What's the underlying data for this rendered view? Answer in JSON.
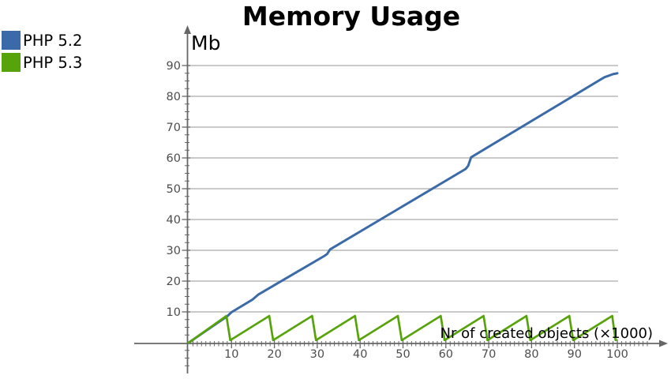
{
  "title": "Memory Usage",
  "legend": {
    "items": [
      {
        "label": "PHP 5.2",
        "color": "#3a6aa8"
      },
      {
        "label": "PHP 5.3",
        "color": "#57a30b"
      }
    ]
  },
  "chart_data": {
    "type": "line",
    "title": "Memory Usage",
    "xlabel": "Nr of created objects (×1000)",
    "ylabel": "Mb",
    "xlim": [
      0,
      108
    ],
    "ylim": [
      -8,
      95
    ],
    "grid": "horizontal",
    "legend_position": "top-left",
    "x_ticks": [
      10,
      20,
      30,
      40,
      50,
      60,
      70,
      80,
      90,
      100
    ],
    "y_ticks": [
      10,
      20,
      30,
      40,
      50,
      60,
      70,
      80,
      90
    ],
    "x_minor_tick_step": 1,
    "y_minor_tick_step": 2.5,
    "axis_color": "#666666",
    "grid_color": "#aaaaaa",
    "tick_label_color": "#4d4d4d",
    "series": [
      {
        "name": "PHP 5.2",
        "color": "#3a6aa8",
        "points": [
          [
            0,
            0
          ],
          [
            9,
            8.6
          ],
          [
            10,
            9.9
          ],
          [
            14.9,
            14.0
          ],
          [
            16.2,
            15.6
          ],
          [
            31.7,
            28.2
          ],
          [
            32.3,
            28.8
          ],
          [
            33,
            30.3
          ],
          [
            64.6,
            56.4
          ],
          [
            65.2,
            57.4
          ],
          [
            65.9,
            60.2
          ],
          [
            97,
            86.2
          ],
          [
            99,
            87.2
          ],
          [
            100,
            87.5
          ]
        ]
      },
      {
        "name": "PHP 5.3",
        "color": "#57a30b",
        "points": [
          [
            0,
            0
          ],
          [
            8.8,
            8.7
          ],
          [
            9.7,
            0.8
          ],
          [
            18.8,
            8.7
          ],
          [
            19.7,
            0.8
          ],
          [
            28.8,
            8.7
          ],
          [
            29.7,
            0.8
          ],
          [
            38.8,
            8.7
          ],
          [
            39.7,
            0.8
          ],
          [
            48.8,
            8.7
          ],
          [
            49.7,
            0.8
          ],
          [
            58.8,
            8.7
          ],
          [
            59.7,
            0.8
          ],
          [
            68.8,
            8.7
          ],
          [
            69.7,
            0.8
          ],
          [
            78.8,
            8.7
          ],
          [
            79.7,
            0.8
          ],
          [
            88.8,
            8.7
          ],
          [
            89.7,
            0.8
          ],
          [
            98.8,
            8.7
          ],
          [
            99.6,
            0.8
          ]
        ]
      }
    ]
  }
}
